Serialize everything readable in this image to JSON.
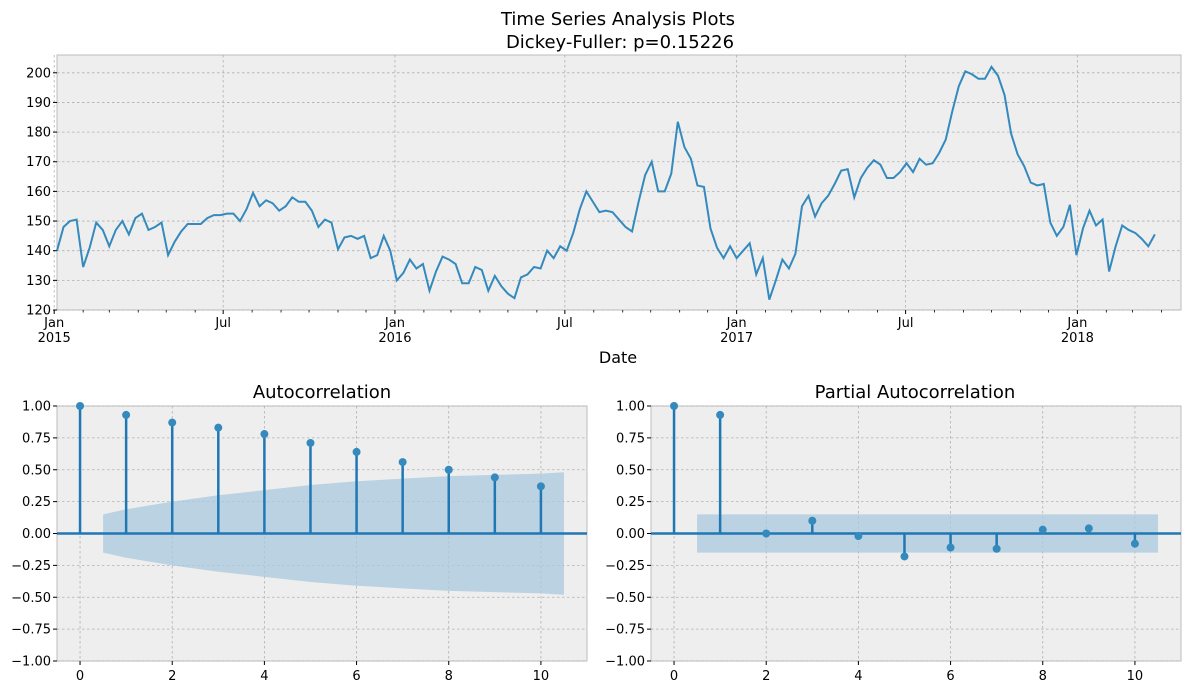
{
  "figure": {
    "title_line1": "Time Series Analysis Plots",
    "title_line2": "Dickey-Fuller: p=0.15226"
  },
  "colors": {
    "background": "#ffffff",
    "axes_face": "#eeeeee",
    "line": "#348abd",
    "stem": "#1f77b4",
    "confidence": "#a9c8de"
  },
  "chart_data": [
    {
      "type": "line",
      "name": "time-series",
      "xlabel": "Date",
      "ylabel": "",
      "ylim": [
        120,
        206
      ],
      "yticks": [
        120,
        130,
        140,
        150,
        160,
        170,
        180,
        190,
        200
      ],
      "xlim": [
        "2015-01-04",
        "2018-04-22"
      ],
      "xticks": [
        {
          "date": "2015-01-01",
          "label": "Jan",
          "sublabel": "2015"
        },
        {
          "date": "2015-07-01",
          "label": "Jul",
          "sublabel": ""
        },
        {
          "date": "2016-01-01",
          "label": "Jan",
          "sublabel": "2016"
        },
        {
          "date": "2016-07-01",
          "label": "Jul",
          "sublabel": ""
        },
        {
          "date": "2017-01-01",
          "label": "Jan",
          "sublabel": "2017"
        },
        {
          "date": "2017-07-01",
          "label": "Jul",
          "sublabel": ""
        },
        {
          "date": "2018-01-01",
          "label": "Jan",
          "sublabel": "2018"
        }
      ],
      "start_date": "2015-01-04",
      "frequency": "weekly",
      "grid": true,
      "values": [
        140,
        148,
        150,
        150.5,
        134.5,
        141,
        149.5,
        147,
        141.5,
        147,
        150,
        145.5,
        151,
        152.5,
        147,
        148,
        149.5,
        138.5,
        143,
        146.5,
        149,
        149,
        149,
        151,
        152,
        152,
        152.5,
        152.5,
        150,
        154,
        159.5,
        155,
        157,
        156,
        153.5,
        155,
        158,
        156.5,
        156.5,
        153.5,
        148,
        150.5,
        149.5,
        140.5,
        144.5,
        145,
        144,
        145,
        137.5,
        138.5,
        145,
        140,
        130,
        132.5,
        137,
        134,
        135.5,
        126.5,
        133,
        138,
        137,
        135.5,
        129,
        129,
        134.5,
        133.5,
        126.5,
        131.5,
        128,
        125.5,
        124,
        131,
        132,
        134.5,
        134,
        140,
        137.5,
        141.5,
        140,
        146,
        154,
        160,
        156.5,
        153,
        153.5,
        153,
        150.5,
        148,
        146.5,
        156.5,
        165.5,
        170,
        160,
        160,
        166,
        183.5,
        175,
        171,
        162,
        161.5,
        147.5,
        141,
        137.5,
        141.5,
        137.5,
        140,
        142.5,
        132,
        137.5,
        123.5,
        130,
        137,
        134,
        139,
        155,
        158.5,
        151.5,
        156,
        158.5,
        162.5,
        167,
        167.5,
        158,
        164.5,
        168,
        170.5,
        169,
        164.5,
        164.5,
        166.5,
        169.5,
        166.5,
        171,
        169,
        169.5,
        173,
        177.5,
        187,
        195.5,
        200.5,
        199.5,
        198,
        198,
        202,
        199,
        192.5,
        179.5,
        172.5,
        168.5,
        163,
        162,
        162.5,
        149.5,
        145,
        148,
        155.5,
        138.5,
        147.5,
        153.5,
        148.5,
        150.5,
        133,
        141.5,
        148.5,
        147,
        146,
        144,
        141.5,
        145.5
      ]
    },
    {
      "type": "stem",
      "name": "acf",
      "title": "Autocorrelation",
      "xlim": [
        -0.5,
        11
      ],
      "ylim": [
        -1.0,
        1.0
      ],
      "xticks": [
        0,
        2,
        4,
        6,
        8,
        10
      ],
      "yticks": [
        1.0,
        0.75,
        0.5,
        0.25,
        0.0,
        -0.25,
        -0.5,
        -0.75,
        -1.0
      ],
      "ytick_labels": [
        "1.00",
        "0.75",
        "0.50",
        "0.25",
        "0.00",
        "−0.25",
        "−0.50",
        "−0.75",
        "−1.00"
      ],
      "lags": [
        0,
        1,
        2,
        3,
        4,
        5,
        6,
        7,
        8,
        9,
        10
      ],
      "values": [
        1.0,
        0.93,
        0.87,
        0.83,
        0.78,
        0.71,
        0.64,
        0.56,
        0.5,
        0.44,
        0.37
      ],
      "confidence_band": {
        "x": [
          0.5,
          1,
          2,
          3,
          4,
          5,
          6,
          7,
          8,
          9,
          10,
          10.5
        ],
        "upper": [
          0.15,
          0.19,
          0.25,
          0.3,
          0.34,
          0.38,
          0.41,
          0.43,
          0.45,
          0.46,
          0.47,
          0.48
        ]
      },
      "grid": true
    },
    {
      "type": "stem",
      "name": "pacf",
      "title": "Partial Autocorrelation",
      "xlim": [
        -0.5,
        11
      ],
      "ylim": [
        -1.0,
        1.0
      ],
      "xticks": [
        0,
        2,
        4,
        6,
        8,
        10
      ],
      "yticks": [
        1.0,
        0.75,
        0.5,
        0.25,
        0.0,
        -0.25,
        -0.5,
        -0.75,
        -1.0
      ],
      "ytick_labels": [
        "1.00",
        "0.75",
        "0.50",
        "0.25",
        "0.00",
        "−0.25",
        "−0.50",
        "−0.75",
        "−1.00"
      ],
      "lags": [
        0,
        1,
        2,
        3,
        4,
        5,
        6,
        7,
        8,
        9,
        10
      ],
      "values": [
        1.0,
        0.93,
        0.0,
        0.1,
        -0.02,
        -0.18,
        -0.11,
        -0.12,
        0.03,
        0.04,
        -0.08
      ],
      "confidence_band": {
        "x": [
          0.5,
          10.5
        ],
        "upper": [
          0.15,
          0.15
        ]
      },
      "grid": true
    }
  ]
}
